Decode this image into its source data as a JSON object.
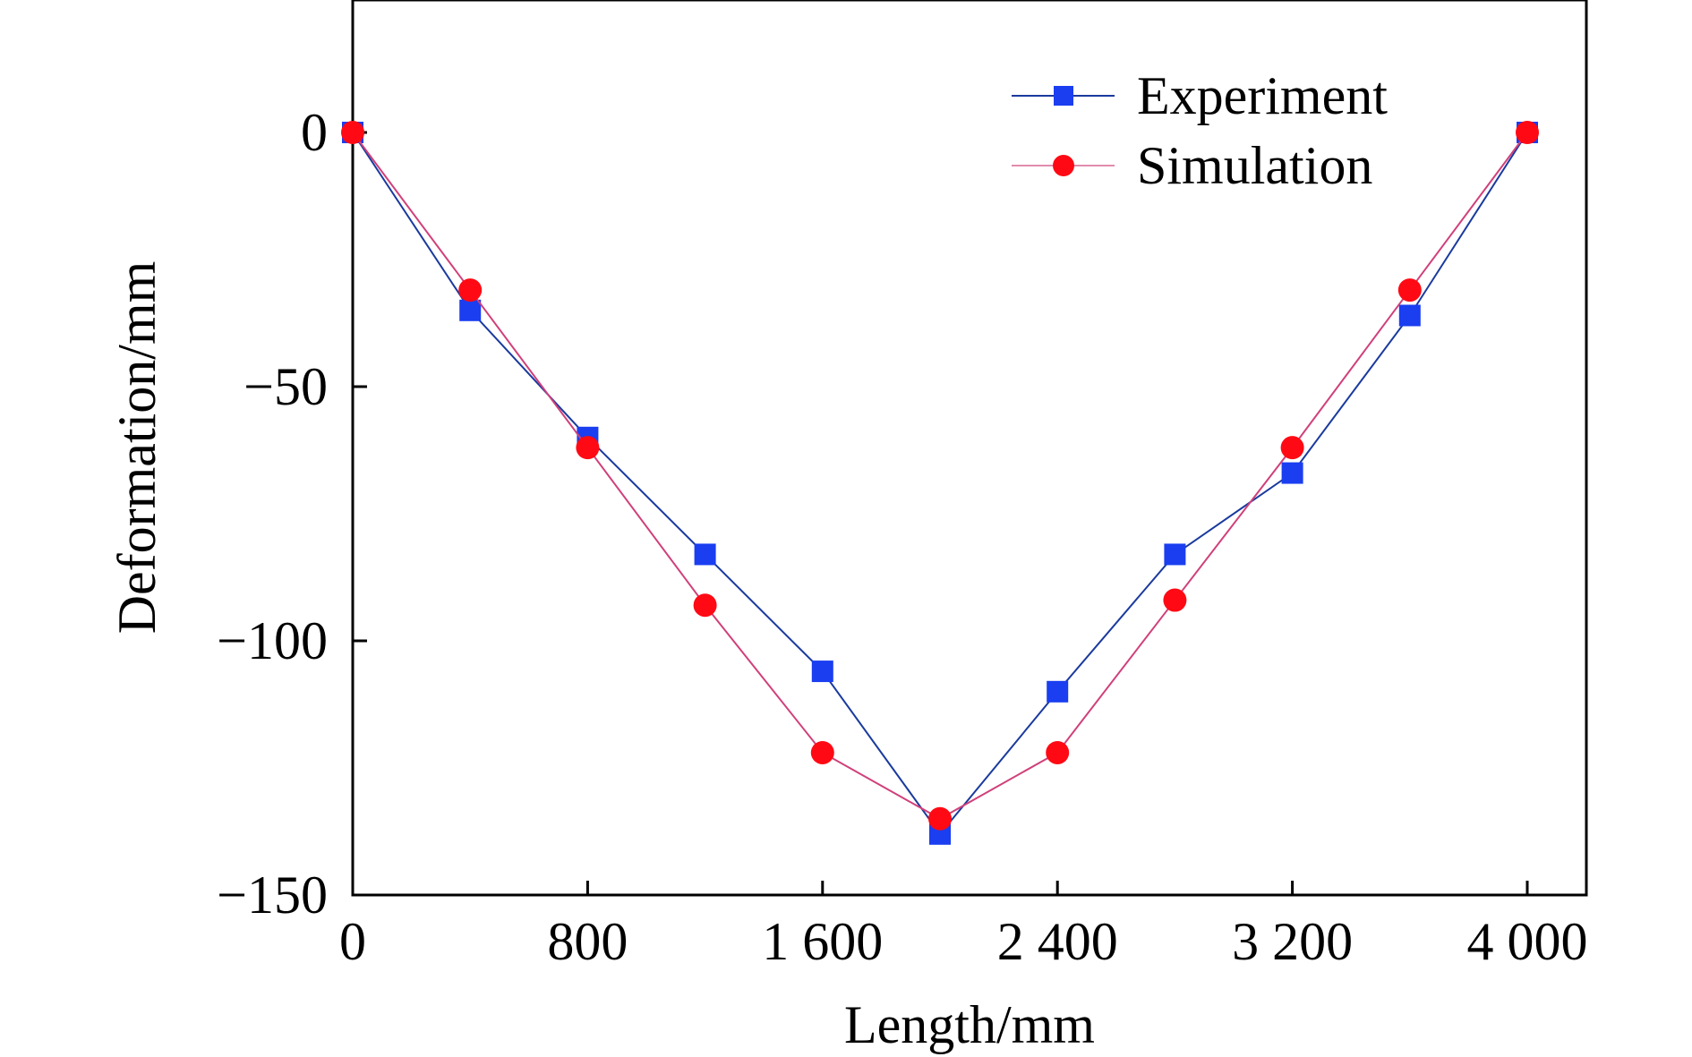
{
  "chart_data": {
    "type": "line",
    "title": "",
    "xlabel": "Length/mm",
    "ylabel": "Deformation/mm",
    "xlim": [
      0,
      4200
    ],
    "ylim": [
      -150,
      25
    ],
    "x_ticks": [
      {
        "value": 0,
        "label": "0"
      },
      {
        "value": 800,
        "label": "800"
      },
      {
        "value": 1600,
        "label": "1 600"
      },
      {
        "value": 2400,
        "label": "2 400"
      },
      {
        "value": 3200,
        "label": "3 200"
      },
      {
        "value": 4000,
        "label": "4 000"
      }
    ],
    "y_ticks": [
      {
        "value": 0,
        "label": "0"
      },
      {
        "value": -50,
        "label": "−50"
      },
      {
        "value": -100,
        "label": "−100"
      },
      {
        "value": -150,
        "label": "−150"
      }
    ],
    "grid": false,
    "legend_position": "top-right",
    "x": [
      0,
      400,
      800,
      1200,
      1600,
      2000,
      2400,
      2800,
      3200,
      3600,
      4000
    ],
    "series": [
      {
        "name": "Experiment",
        "color": "#1a3a9e",
        "marker_color": "#1a3ef0",
        "marker": "square",
        "values": [
          0,
          -35,
          -60,
          -83,
          -106,
          -138,
          -110,
          -83,
          -67,
          -36,
          0
        ]
      },
      {
        "name": "Simulation",
        "color": "#d0407a",
        "marker_color": "#ff0a14",
        "marker": "circle",
        "values": [
          0,
          -31,
          -62,
          -93,
          -122,
          -135,
          -122,
          -92,
          -62,
          -31,
          0
        ]
      }
    ]
  }
}
